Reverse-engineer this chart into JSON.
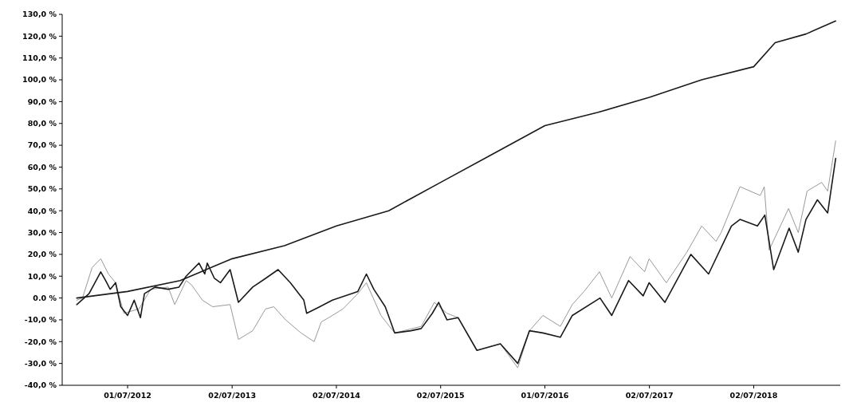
{
  "chart_data": {
    "type": "line",
    "xlim": [
      "2011-11-15",
      "2019-05-01"
    ],
    "xticks": [
      {
        "value": "2012-07-01",
        "label": "01/07/2012"
      },
      {
        "value": "2013-07-02",
        "label": "02/07/2013"
      },
      {
        "value": "2014-07-02",
        "label": "02/07/2014"
      },
      {
        "value": "2015-07-02",
        "label": "02/07/2015"
      },
      {
        "value": "2016-07-01",
        "label": "01/07/2016"
      },
      {
        "value": "2017-07-02",
        "label": "02/07/2017"
      },
      {
        "value": "2018-07-02",
        "label": "02/07/2018"
      }
    ],
    "ylim": [
      -40,
      130
    ],
    "yticks": [
      {
        "value": -40,
        "label": "-40,0 %"
      },
      {
        "value": -30,
        "label": "-30,0 %"
      },
      {
        "value": -20,
        "label": "-20,0 %"
      },
      {
        "value": -10,
        "label": "-10,0 %"
      },
      {
        "value": 0,
        "label": "0.0 %"
      },
      {
        "value": 10,
        "label": "10,0 %"
      },
      {
        "value": 20,
        "label": "20,0 %"
      },
      {
        "value": 30,
        "label": "30,0 %"
      },
      {
        "value": 40,
        "label": "40,0 %"
      },
      {
        "value": 50,
        "label": "50,0 %"
      },
      {
        "value": 60,
        "label": "60,0 %"
      },
      {
        "value": 70,
        "label": "70,0 %"
      },
      {
        "value": 80,
        "label": "80,0 %"
      },
      {
        "value": 90,
        "label": "90,0 %"
      },
      {
        "value": 100,
        "label": "100,0 %"
      },
      {
        "value": 110,
        "label": "110,0 %"
      },
      {
        "value": 120,
        "label": "120,0 %"
      },
      {
        "value": 130,
        "label": "130,0 %"
      }
    ],
    "grid": false,
    "line_style": "solid",
    "series": [
      {
        "color": "#999999",
        "x": [
          "2012-01-05",
          "2012-01-25",
          "2012-02-28",
          "2012-03-29",
          "2012-04-25",
          "2012-05-20",
          "2012-06-18",
          "2012-08-10",
          "2012-09-20",
          "2012-11-20",
          "2012-12-13",
          "2013-01-22",
          "2013-02-10",
          "2013-03-20",
          "2013-04-25",
          "2013-06-25",
          "2013-07-24",
          "2013-09-12",
          "2013-10-27",
          "2013-11-25",
          "2014-01-05",
          "2014-02-28",
          "2014-04-15",
          "2014-05-10",
          "2014-06-18",
          "2014-07-25",
          "2014-09-15",
          "2014-10-15",
          "2014-12-05",
          "2015-01-22",
          "2015-04-25",
          "2015-06-10",
          "2015-07-24",
          "2015-09-01",
          "2015-11-06",
          "2016-01-27",
          "2016-03-28",
          "2016-05-08",
          "2016-06-24",
          "2016-08-24",
          "2016-10-05",
          "2016-11-15",
          "2017-01-08",
          "2017-02-20",
          "2017-04-25",
          "2017-06-15",
          "2017-07-01",
          "2017-08-30",
          "2017-11-10",
          "2018-01-01",
          "2018-02-20",
          "2018-03-10",
          "2018-05-15",
          "2018-07-25",
          "2018-08-08",
          "2018-08-25",
          "2018-11-01",
          "2018-12-05",
          "2019-01-05",
          "2019-02-25",
          "2019-03-18",
          "2019-04-15"
        ],
        "values": [
          -1,
          0,
          14,
          18,
          11,
          7,
          -7,
          -5,
          4,
          5,
          -3,
          8,
          6,
          -1,
          -4,
          -3,
          -19,
          -15,
          -5,
          -4,
          -10,
          -16,
          -20,
          -11,
          -8,
          -5,
          2,
          7,
          -8,
          -16,
          -13,
          -2,
          -7,
          -9,
          -24,
          -21,
          -32,
          -15,
          -8,
          -13,
          -3,
          3,
          12,
          0,
          19,
          12,
          18,
          7,
          21,
          33,
          26,
          30,
          51,
          47,
          51,
          22,
          41,
          30,
          49,
          53,
          49,
          72
        ]
      },
      {
        "color": "#1a1a1a",
        "x": [
          "2012-01-05",
          "2012-02-17",
          "2012-03-29",
          "2012-04-15",
          "2012-05-01",
          "2012-05-20",
          "2012-06-07",
          "2012-07-01",
          "2012-07-24",
          "2012-08-15",
          "2012-08-29",
          "2012-10-05",
          "2012-11-20",
          "2012-12-28",
          "2013-01-22",
          "2013-03-08",
          "2013-03-28",
          "2013-04-06",
          "2013-05-01",
          "2013-05-22",
          "2013-06-25",
          "2013-07-24",
          "2013-09-12",
          "2013-10-27",
          "2013-12-10",
          "2014-01-22",
          "2014-03-10",
          "2014-03-20",
          "2014-05-05",
          "2014-06-18",
          "2014-09-15",
          "2014-10-15",
          "2014-11-10",
          "2014-12-20",
          "2015-01-22",
          "2015-03-20",
          "2015-04-25",
          "2015-06-03",
          "2015-06-25",
          "2015-07-24",
          "2015-09-01",
          "2015-11-06",
          "2016-01-27",
          "2016-03-28",
          "2016-05-08",
          "2016-06-24",
          "2016-08-24",
          "2016-10-05",
          "2017-01-10",
          "2017-02-20",
          "2017-04-20",
          "2017-06-10",
          "2017-07-01",
          "2017-08-25",
          "2017-11-24",
          "2018-01-25",
          "2018-04-15",
          "2018-05-15",
          "2018-07-15",
          "2018-08-10",
          "2018-09-10",
          "2018-11-03",
          "2018-12-05",
          "2019-01-01",
          "2019-02-10",
          "2019-03-18",
          "2019-04-15"
        ],
        "values": [
          -3,
          2,
          12,
          8,
          4,
          7,
          -4,
          -8,
          -1,
          -9,
          2,
          5,
          4,
          5,
          10,
          16,
          11,
          16,
          9,
          7,
          13,
          -2,
          5,
          9,
          13,
          7,
          -1,
          -7,
          -4,
          -1,
          3,
          11,
          4,
          -4,
          -16,
          -15,
          -14,
          -7,
          -2,
          -10,
          -9,
          -24,
          -21,
          -30,
          -15,
          -16,
          -18,
          -8,
          0,
          -8,
          8,
          1,
          7,
          -2,
          20,
          11,
          33,
          36,
          33,
          38,
          13,
          32,
          21,
          36,
          45,
          39,
          64
        ]
      },
      {
        "color": "#1a1a1a",
        "x": [
          "2012-01-05",
          "2012-07-01",
          "2013-01-01",
          "2013-07-02",
          "2014-01-01",
          "2014-07-02",
          "2015-01-01",
          "2015-07-02",
          "2016-01-01",
          "2016-07-01",
          "2017-01-01",
          "2017-07-02",
          "2018-01-01",
          "2018-07-02",
          "2018-09-15",
          "2019-01-01",
          "2019-04-15"
        ],
        "values": [
          0,
          3,
          8,
          18,
          24,
          33,
          40,
          53,
          66,
          79,
          85,
          92,
          100,
          106,
          117,
          121,
          127
        ]
      }
    ]
  }
}
